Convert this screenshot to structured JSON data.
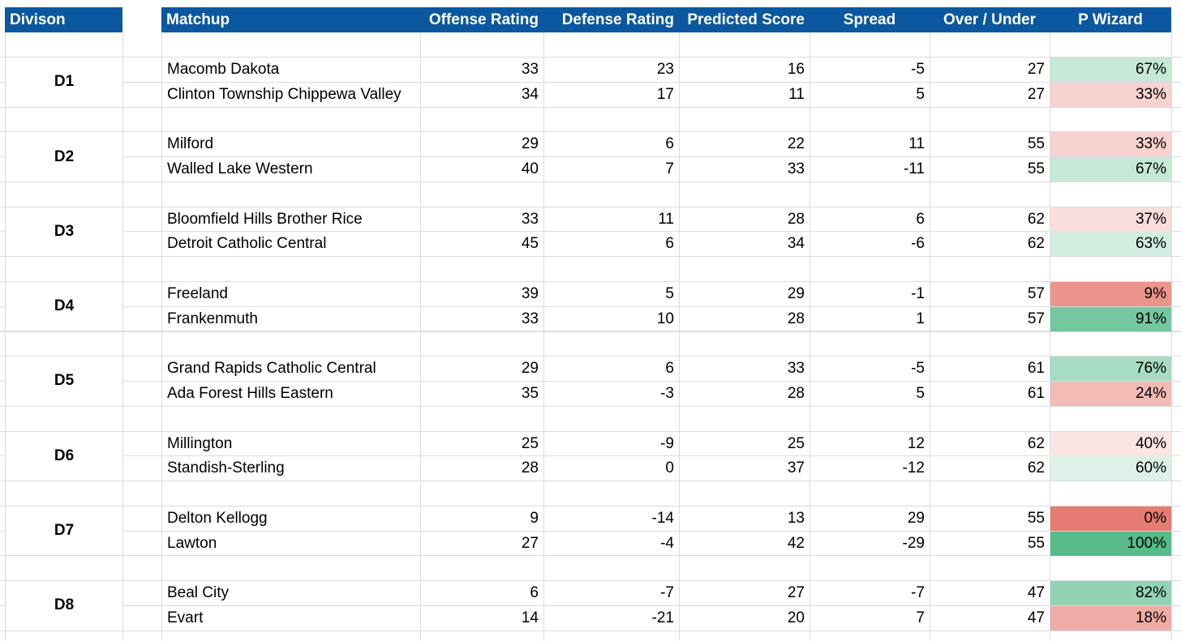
{
  "colors": {
    "header_bg": "#0b57a0",
    "header_text": "#ffffff",
    "grid": "#dadce0"
  },
  "headers": {
    "division": "Divison",
    "matchup": "Matchup",
    "offense": "Offense Rating",
    "defense": "Defense Rating",
    "predicted": "Predicted Score",
    "spread": "Spread",
    "over_under": "Over / Under",
    "pwizard": "P Wizard"
  },
  "divisions": [
    {
      "label": "D1",
      "teams": [
        {
          "team": "Macomb Dakota",
          "offense": "33",
          "defense": "23",
          "predicted": "16",
          "spread": "-5",
          "over_under": "27",
          "pwizard": "67%",
          "pwizard_value": 0.67
        },
        {
          "team": "Clinton Township Chippewa Valley",
          "offense": "34",
          "defense": "17",
          "predicted": "11",
          "spread": "5",
          "over_under": "27",
          "pwizard": "33%",
          "pwizard_value": 0.33
        }
      ]
    },
    {
      "label": "D2",
      "teams": [
        {
          "team": "Milford",
          "offense": "29",
          "defense": "6",
          "predicted": "22",
          "spread": "11",
          "over_under": "55",
          "pwizard": "33%",
          "pwizard_value": 0.33
        },
        {
          "team": "Walled Lake Western",
          "offense": "40",
          "defense": "7",
          "predicted": "33",
          "spread": "-11",
          "over_under": "55",
          "pwizard": "67%",
          "pwizard_value": 0.67
        }
      ]
    },
    {
      "label": "D3",
      "teams": [
        {
          "team": "Bloomfield Hills Brother Rice",
          "offense": "33",
          "defense": "11",
          "predicted": "28",
          "spread": "6",
          "over_under": "62",
          "pwizard": "37%",
          "pwizard_value": 0.37
        },
        {
          "team": "Detroit Catholic Central",
          "offense": "45",
          "defense": "6",
          "predicted": "34",
          "spread": "-6",
          "over_under": "62",
          "pwizard": "63%",
          "pwizard_value": 0.63
        }
      ]
    },
    {
      "label": "D4",
      "teams": [
        {
          "team": "Freeland",
          "offense": "39",
          "defense": "5",
          "predicted": "29",
          "spread": "-1",
          "over_under": "57",
          "pwizard": "9%",
          "pwizard_value": 0.09
        },
        {
          "team": "Frankenmuth",
          "offense": "33",
          "defense": "10",
          "predicted": "28",
          "spread": "1",
          "over_under": "57",
          "pwizard": "91%",
          "pwizard_value": 0.91
        }
      ]
    },
    {
      "label": "D5",
      "teams": [
        {
          "team": "Grand Rapids Catholic Central",
          "offense": "29",
          "defense": "6",
          "predicted": "33",
          "spread": "-5",
          "over_under": "61",
          "pwizard": "76%",
          "pwizard_value": 0.76
        },
        {
          "team": "Ada Forest Hills Eastern",
          "offense": "35",
          "defense": "-3",
          "predicted": "28",
          "spread": "5",
          "over_under": "61",
          "pwizard": "24%",
          "pwizard_value": 0.24
        }
      ]
    },
    {
      "label": "D6",
      "teams": [
        {
          "team": "Millington",
          "offense": "25",
          "defense": "-9",
          "predicted": "25",
          "spread": "12",
          "over_under": "62",
          "pwizard": "40%",
          "pwizard_value": 0.4
        },
        {
          "team": "Standish-Sterling",
          "offense": "28",
          "defense": "0",
          "predicted": "37",
          "spread": "-12",
          "over_under": "62",
          "pwizard": "60%",
          "pwizard_value": 0.6
        }
      ]
    },
    {
      "label": "D7",
      "teams": [
        {
          "team": "Delton Kellogg",
          "offense": "9",
          "defense": "-14",
          "predicted": "13",
          "spread": "29",
          "over_under": "55",
          "pwizard": "0%",
          "pwizard_value": 0.0
        },
        {
          "team": "Lawton",
          "offense": "27",
          "defense": "-4",
          "predicted": "42",
          "spread": "-29",
          "over_under": "55",
          "pwizard": "100%",
          "pwizard_value": 1.0
        }
      ]
    },
    {
      "label": "D8",
      "teams": [
        {
          "team": "Beal City",
          "offense": "6",
          "defense": "-7",
          "predicted": "27",
          "spread": "-7",
          "over_under": "47",
          "pwizard": "82%",
          "pwizard_value": 0.82
        },
        {
          "team": "Evart",
          "offense": "14",
          "defense": "-21",
          "predicted": "20",
          "spread": "7",
          "over_under": "47",
          "pwizard": "18%",
          "pwizard_value": 0.18
        }
      ]
    }
  ]
}
